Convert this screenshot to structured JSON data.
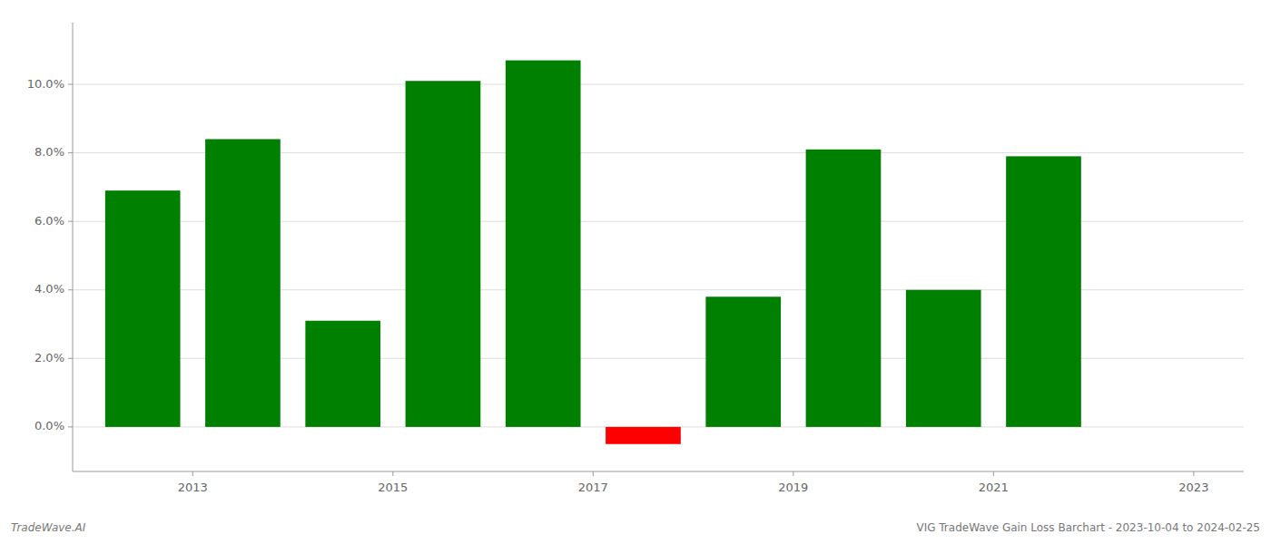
{
  "chart_data": {
    "type": "bar",
    "x": [
      2012.5,
      2013.5,
      2014.5,
      2015.5,
      2016.5,
      2017.5,
      2018.5,
      2019.5,
      2020.5,
      2021.5
    ],
    "values": [
      0.069,
      0.084,
      0.031,
      0.101,
      0.107,
      -0.005,
      0.038,
      0.081,
      0.04,
      0.079
    ],
    "colors": [
      "#008000",
      "#008000",
      "#008000",
      "#008000",
      "#008000",
      "#ff0000",
      "#008000",
      "#008000",
      "#008000",
      "#008000"
    ],
    "xlim": [
      2011.8,
      2023.5
    ],
    "xticks": [
      2013,
      2015,
      2017,
      2019,
      2021,
      2023
    ],
    "ylim": [
      -0.013,
      0.118
    ],
    "yticks": [
      {
        "value": 0.0,
        "label": "0.0%"
      },
      {
        "value": 0.02,
        "label": "2.0%"
      },
      {
        "value": 0.04,
        "label": "4.0%"
      },
      {
        "value": 0.06,
        "label": "6.0%"
      },
      {
        "value": 0.08,
        "label": "8.0%"
      },
      {
        "value": 0.1,
        "label": "10.0%"
      }
    ],
    "grid": true,
    "annotations": [
      "TradeWave.AI",
      "VIG TradeWave Gain Loss Barchart - 2023-10-04 to 2024-02-25"
    ]
  }
}
